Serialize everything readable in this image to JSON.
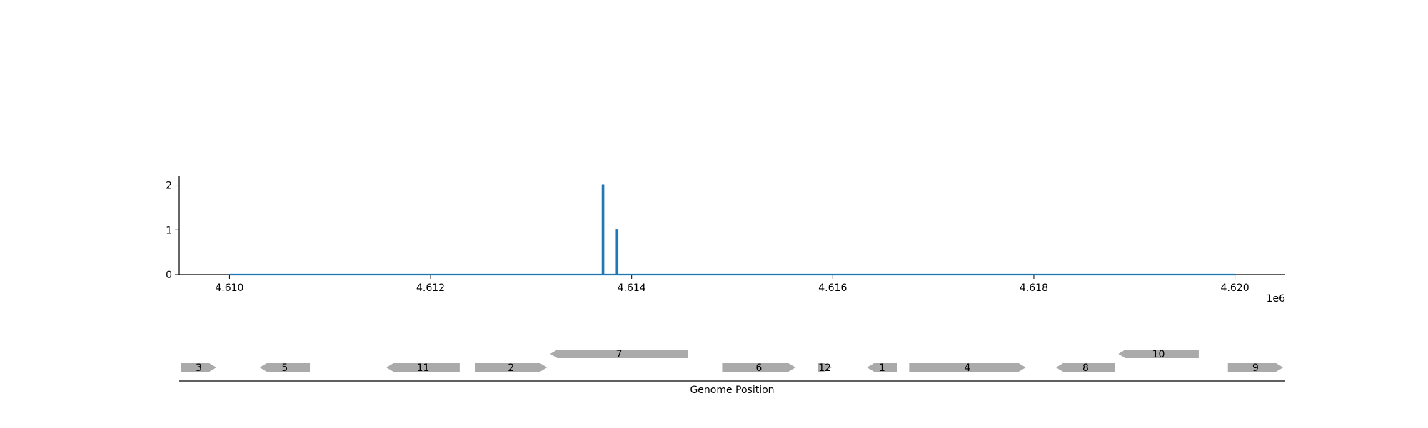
{
  "chart_data": [
    {
      "type": "line",
      "series": [
        {
          "x": [
            4610000,
            4613710,
            4613710,
            4613720,
            4613720,
            4613850,
            4613850,
            4613860,
            4613860,
            4620000
          ],
          "y": [
            0,
            0,
            2,
            2,
            0,
            0,
            1,
            1,
            0,
            0
          ],
          "color": "#1f77b4"
        }
      ],
      "xlim": [
        4609500,
        4620500
      ],
      "ylim": [
        0,
        2.2
      ],
      "xticks": [
        4610000,
        4612000,
        4614000,
        4616000,
        4618000,
        4620000
      ],
      "xtick_labels": [
        "4.610",
        "4.612",
        "4.614",
        "4.616",
        "4.618",
        "4.620"
      ],
      "yticks": [
        0,
        1,
        2
      ],
      "ytick_labels": [
        "0",
        "1",
        "2"
      ],
      "offset_label": "1e6",
      "grid": false
    },
    {
      "type": "gene-track",
      "xlabel": "Genome Position",
      "genes": [
        {
          "label": "3",
          "start": 4609520,
          "end": 4609870,
          "strand": "+",
          "row": 0
        },
        {
          "label": "5",
          "start": 4610300,
          "end": 4610800,
          "strand": "-",
          "row": 0
        },
        {
          "label": "11",
          "start": 4611560,
          "end": 4612290,
          "strand": "-",
          "row": 0
        },
        {
          "label": "2",
          "start": 4612440,
          "end": 4613160,
          "strand": "+",
          "row": 0
        },
        {
          "label": "7",
          "start": 4613190,
          "end": 4614560,
          "strand": "-",
          "row": 1
        },
        {
          "label": "6",
          "start": 4614900,
          "end": 4615630,
          "strand": "+",
          "row": 0
        },
        {
          "label": "12",
          "start": 4615850,
          "end": 4615990,
          "strand": "+",
          "row": 0
        },
        {
          "label": "1",
          "start": 4616340,
          "end": 4616640,
          "strand": "-",
          "row": 0
        },
        {
          "label": "4",
          "start": 4616760,
          "end": 4617920,
          "strand": "+",
          "row": 0
        },
        {
          "label": "8",
          "start": 4618220,
          "end": 4618810,
          "strand": "-",
          "row": 0
        },
        {
          "label": "10",
          "start": 4618840,
          "end": 4619640,
          "strand": "-",
          "row": 1
        },
        {
          "label": "9",
          "start": 4619930,
          "end": 4620480,
          "strand": "+",
          "row": 0
        }
      ],
      "gene_color": "#aaaaaa"
    }
  ]
}
